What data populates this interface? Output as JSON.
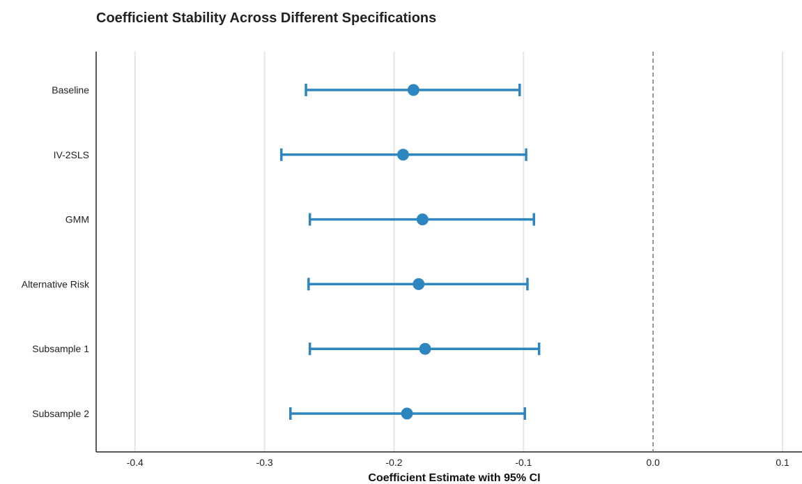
{
  "chart_data": {
    "type": "scatter",
    "title": "Coefficient Stability Across Different Specifications",
    "xlabel": "Coefficient Estimate with 95% CI",
    "ylabel": "",
    "xlim": [
      -0.43,
      0.115
    ],
    "xticks": [
      -0.4,
      -0.3,
      -0.2,
      -0.1,
      0.0,
      0.1
    ],
    "xtick_labels": [
      "-0.4",
      "-0.3",
      "-0.2",
      "-0.1",
      "0.0",
      "0.1"
    ],
    "reference_line": {
      "x": 0.0,
      "style": "dashed",
      "color": "#777777"
    },
    "grid": "vertical",
    "color": "#2e86c1",
    "categories": [
      "Baseline",
      "IV-2SLS",
      "GMM",
      "Alternative Risk",
      "Subsample 1",
      "Subsample 2"
    ],
    "series": [
      {
        "estimate": -0.185,
        "ci_low": -0.268,
        "ci_high": -0.103
      },
      {
        "estimate": -0.193,
        "ci_low": -0.287,
        "ci_high": -0.098
      },
      {
        "estimate": -0.178,
        "ci_low": -0.265,
        "ci_high": -0.092
      },
      {
        "estimate": -0.181,
        "ci_low": -0.266,
        "ci_high": -0.097
      },
      {
        "estimate": -0.176,
        "ci_low": -0.265,
        "ci_high": -0.088
      },
      {
        "estimate": -0.19,
        "ci_low": -0.28,
        "ci_high": -0.099
      }
    ]
  }
}
